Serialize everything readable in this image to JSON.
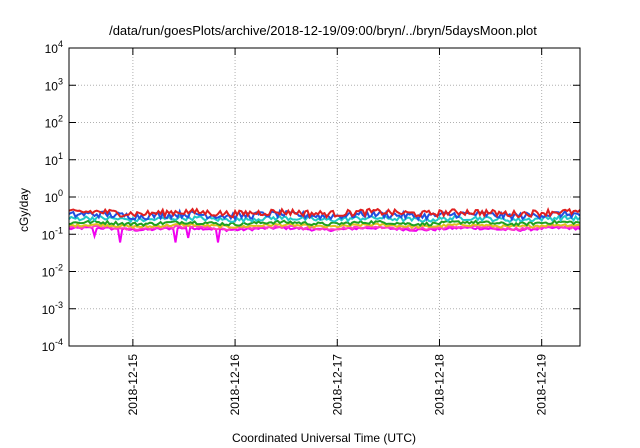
{
  "chart_data": {
    "type": "line",
    "title": "/data/run/goesPlots/archive/2018-12-19/09:00/bryn/../bryn/5daysMoon.plot",
    "xlabel": "Coordinated Universal Time (UTC)",
    "ylabel": "cGy/day",
    "y_scale": "log",
    "ylim": [
      0.0001,
      10000
    ],
    "y_ticks": [
      {
        "value": 0.0001,
        "label_base": "10",
        "label_exp": "-4"
      },
      {
        "value": 0.001,
        "label_base": "10",
        "label_exp": "-3"
      },
      {
        "value": 0.01,
        "label_base": "10",
        "label_exp": "-2"
      },
      {
        "value": 0.1,
        "label_base": "10",
        "label_exp": "-1"
      },
      {
        "value": 1,
        "label_base": "10",
        "label_exp": "0"
      },
      {
        "value": 10,
        "label_base": "10",
        "label_exp": "1"
      },
      {
        "value": 100,
        "label_base": "10",
        "label_exp": "2"
      },
      {
        "value": 1000,
        "label_base": "10",
        "label_exp": "3"
      },
      {
        "value": 10000,
        "label_base": "10",
        "label_exp": "4"
      }
    ],
    "xlim": [
      "2018-12-14T09:00",
      "2018-12-19T09:00"
    ],
    "x_ticks": [
      "2018-12-15",
      "2018-12-16",
      "2018-12-17",
      "2018-12-18",
      "2018-12-19"
    ],
    "grid": true,
    "series": [
      {
        "color": "#e02020",
        "base": 0.38,
        "noise": 0.2
      },
      {
        "color": "#2050e0",
        "base": 0.33,
        "noise": 0.2
      },
      {
        "color": "#20c8c8",
        "base": 0.26,
        "noise": 0.14
      },
      {
        "color": "#20a020",
        "base": 0.2,
        "noise": 0.1
      },
      {
        "color": "#e0c020",
        "base": 0.17,
        "noise": 0.08
      },
      {
        "color": "#ff40c0",
        "base": 0.15,
        "noise": 0.08
      },
      {
        "color": "#f000f0",
        "base": 0.14,
        "noise": 0.08,
        "dips": [
          [
            "2018-12-14T21:00",
            0.06
          ],
          [
            "2018-12-15T10:00",
            0.06
          ],
          [
            "2018-12-15T20:00",
            0.06
          ],
          [
            "2018-12-14T15:00",
            0.09
          ],
          [
            "2018-12-15T13:00",
            0.08
          ]
        ]
      }
    ]
  }
}
